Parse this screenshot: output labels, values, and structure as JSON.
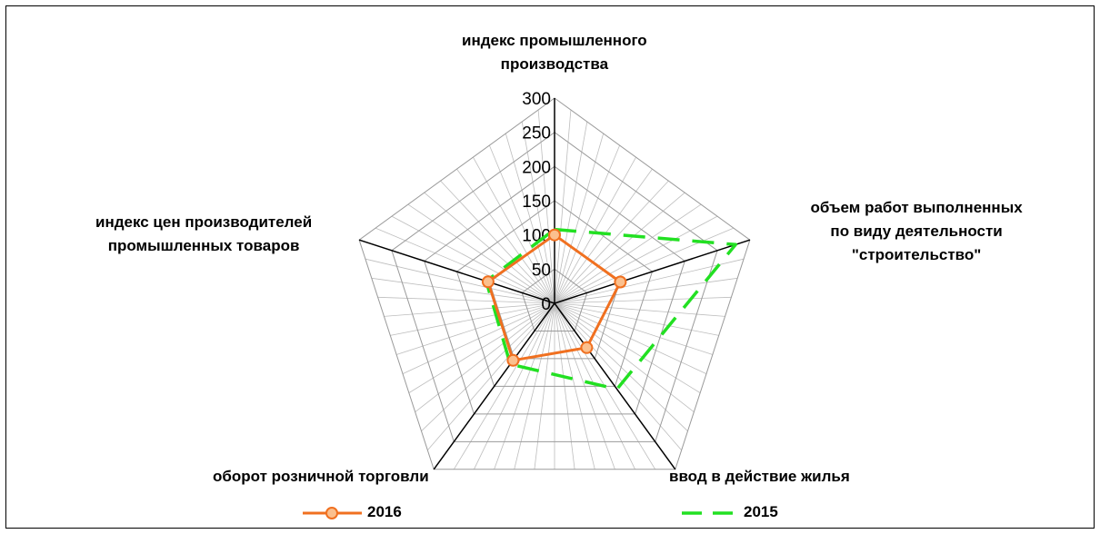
{
  "chart_data": {
    "type": "radar",
    "categories": [
      "индекс промышленного производства",
      "объем работ выполненных по виду деятельности \"строительство\"",
      "ввод в действие жилья",
      "оборот розничной торговли",
      "индекс цен производителей промышленных товаров"
    ],
    "category_lines": [
      [
        "индекс промышленного",
        "производства"
      ],
      [
        "объем работ выполненных",
        "по виду деятельности",
        "\"строительство\""
      ],
      [
        "ввод в действие жилья"
      ],
      [
        "оборот розничной торговли"
      ],
      [
        "индекс цен производителей",
        "промышленных товаров"
      ]
    ],
    "rlim": [
      0,
      300
    ],
    "ticks": [
      0,
      50,
      100,
      150,
      200,
      250,
      300
    ],
    "tick_labels": [
      "0",
      "50",
      "100",
      "150",
      "200",
      "250",
      "300"
    ],
    "series": [
      {
        "name": "2016",
        "values": [
          100,
          101,
          80,
          103,
          102
        ],
        "color": "#f07020",
        "marker": "circle",
        "marker_fill": "#fbc08e",
        "style": "solid"
      },
      {
        "name": "2015",
        "values": [
          108,
          278,
          155,
          110,
          105
        ],
        "color": "#22e022",
        "style": "dashed"
      }
    ],
    "grid": true,
    "legend_position": "bottom"
  }
}
